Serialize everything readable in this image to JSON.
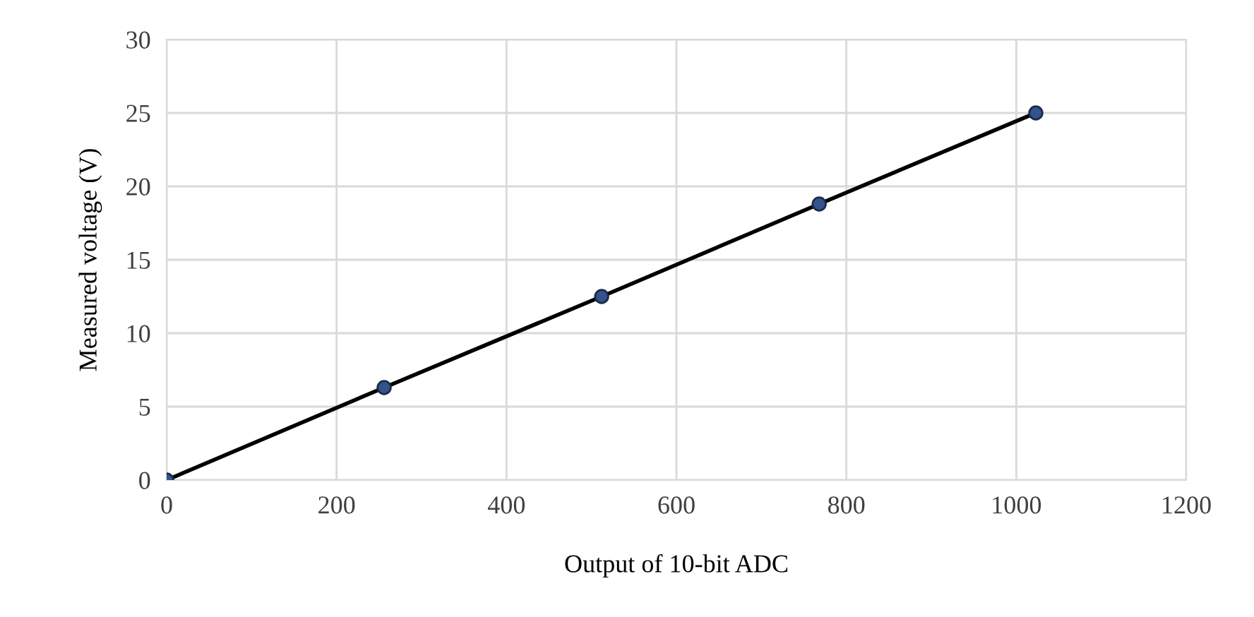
{
  "chart_data": {
    "type": "scatter",
    "xlabel": "Output of 10-bit ADC",
    "ylabel": "Measured voltage (V)",
    "x": [
      0,
      256,
      512,
      768,
      1023
    ],
    "series": [
      {
        "type": "line",
        "color": "#000000",
        "values": [
          0,
          6.3,
          12.5,
          18.8,
          25
        ]
      },
      {
        "color": "#34538a",
        "marker": "circle",
        "values": [
          0,
          6.3,
          12.5,
          18.8,
          25
        ]
      }
    ],
    "xlim": [
      0,
      1200
    ],
    "xticks": [
      0,
      200,
      400,
      600,
      800,
      1000,
      1200
    ],
    "ylim": [
      0,
      30
    ],
    "yticks": [
      0,
      5,
      10,
      15,
      20,
      25,
      30
    ],
    "grid": true
  }
}
